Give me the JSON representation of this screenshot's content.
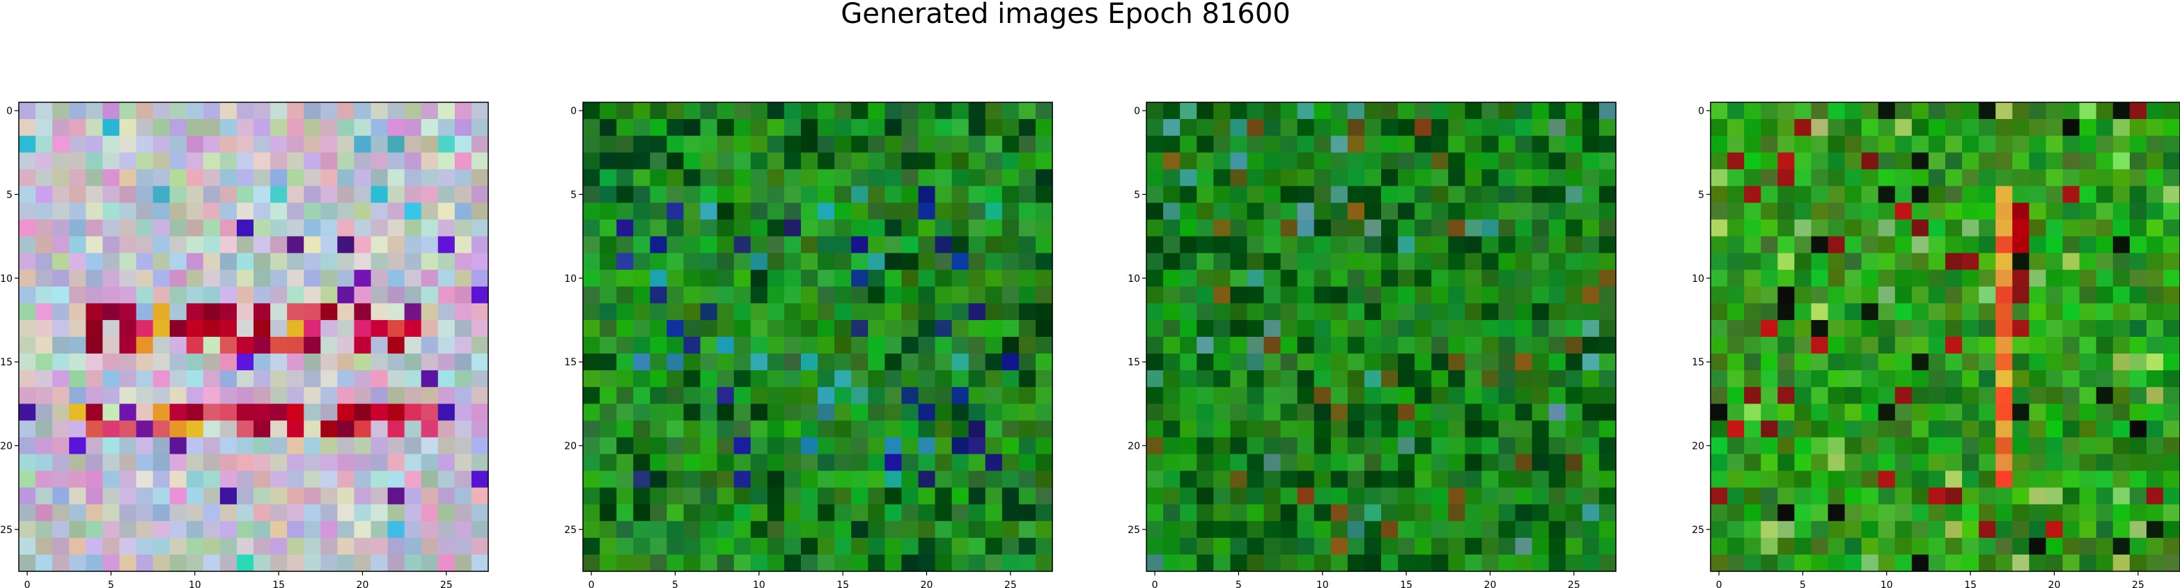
{
  "figure": {
    "title": "Generated images Epoch 81600"
  },
  "panels": [
    {
      "name": "image-1",
      "palette": "pastel",
      "xticks": [
        "0",
        "5",
        "10",
        "15",
        "20",
        "25"
      ],
      "yticks": [
        "0",
        "5",
        "10",
        "15",
        "20",
        "25"
      ]
    },
    {
      "name": "image-2",
      "palette": "green-blue",
      "xticks": [
        "0",
        "5",
        "10",
        "15",
        "20",
        "25"
      ],
      "yticks": [
        "0",
        "5",
        "10",
        "15",
        "20",
        "25"
      ]
    },
    {
      "name": "image-3",
      "palette": "green",
      "xticks": [
        "0",
        "5",
        "10",
        "15",
        "20",
        "25"
      ],
      "yticks": [
        "0",
        "5",
        "10",
        "15",
        "20",
        "25"
      ]
    },
    {
      "name": "image-4",
      "palette": "green-red",
      "xticks": [
        "0",
        "5",
        "10",
        "15",
        "20",
        "25"
      ],
      "yticks": [
        "0",
        "5",
        "10",
        "15",
        "20",
        "25"
      ]
    }
  ],
  "grid_size": 28
}
